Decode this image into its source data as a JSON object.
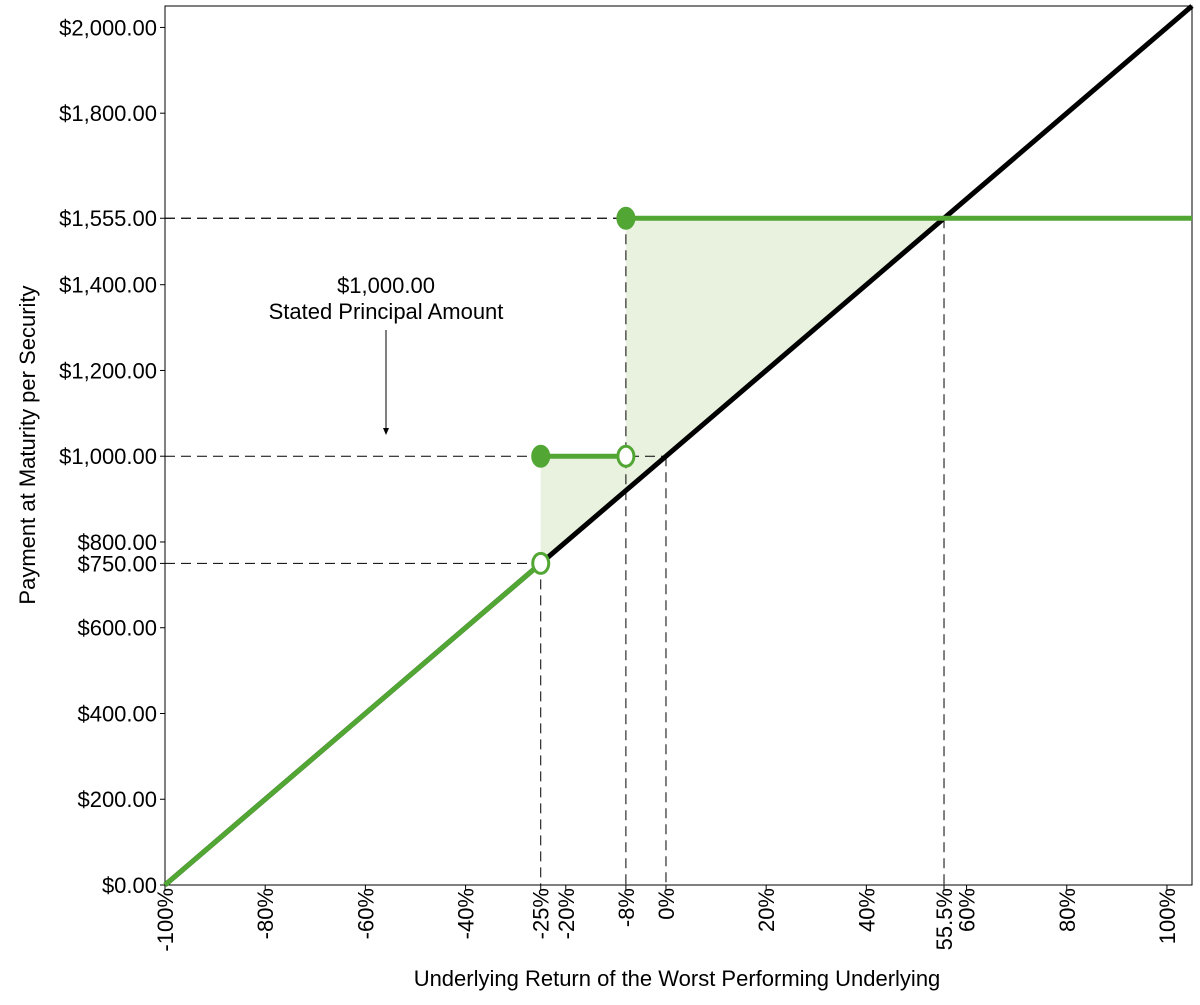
{
  "chart_data": {
    "type": "line",
    "x_label": "Underlying Return of the Worst Performing Underlying",
    "y_label": "Payment at Maturity per Security",
    "annotation": [
      "$1,000.00",
      "Stated Principal Amount"
    ],
    "xlim": [
      -100,
      105
    ],
    "ylim": [
      0,
      2050
    ],
    "xticks": [
      {
        "value": -100,
        "label": "-100%"
      },
      {
        "value": -80,
        "label": "-80%"
      },
      {
        "value": -60,
        "label": "-60%"
      },
      {
        "value": -40,
        "label": "-40%"
      },
      {
        "value": -25,
        "label": "-25%"
      },
      {
        "value": -20,
        "label": "-20%"
      },
      {
        "value": -8,
        "label": "-8%"
      },
      {
        "value": 0,
        "label": "0%"
      },
      {
        "value": 20,
        "label": "20%"
      },
      {
        "value": 40,
        "label": "40%"
      },
      {
        "value": 55.5,
        "label": "55.5%"
      },
      {
        "value": 60,
        "label": "60%"
      },
      {
        "value": 80,
        "label": "80%"
      },
      {
        "value": 100,
        "label": "100%"
      }
    ],
    "yticks": [
      {
        "value": 0,
        "label": "$0.00"
      },
      {
        "value": 200,
        "label": "$200.00"
      },
      {
        "value": 400,
        "label": "$400.00"
      },
      {
        "value": 600,
        "label": "$600.00"
      },
      {
        "value": 750,
        "label": "$750.00"
      },
      {
        "value": 800,
        "label": "$800.00"
      },
      {
        "value": 1000,
        "label": "$1,000.00"
      },
      {
        "value": 1200,
        "label": "$1,200.00"
      },
      {
        "value": 1400,
        "label": "$1,400.00"
      },
      {
        "value": 1555,
        "label": "$1,555.00"
      },
      {
        "value": 1800,
        "label": "$1,800.00"
      },
      {
        "value": 2000,
        "label": "$2,000.00"
      }
    ],
    "fill_area": {
      "color": "#e9f2de",
      "x": [
        -25,
        -25,
        -8,
        -8,
        55.5
      ],
      "values": [
        750,
        1000,
        1000,
        1555,
        1555
      ]
    },
    "series": [
      {
        "color": "#000000",
        "x": [
          -100,
          105
        ],
        "values": [
          0,
          2050
        ]
      },
      {
        "color": "#52a634",
        "x": [
          -100,
          -25,
          -25,
          -25,
          -8,
          -8,
          -8,
          105
        ],
        "values": [
          0,
          750,
          null,
          1000,
          1000,
          null,
          1555,
          1555
        ]
      }
    ],
    "guides": [
      {
        "x": -8,
        "y": 1555
      },
      {
        "x": 55.5,
        "y": 1555
      },
      {
        "x": 0,
        "y": 1000
      },
      {
        "x": -25,
        "y": 750
      }
    ],
    "markers": [
      {
        "x": -25,
        "y": 1000,
        "filled": true
      },
      {
        "x": -25,
        "y": 750,
        "filled": false
      },
      {
        "x": -8,
        "y": 1000,
        "filled": false
      },
      {
        "x": -8,
        "y": 1555,
        "filled": true
      }
    ],
    "marker_color": "#52a634"
  }
}
